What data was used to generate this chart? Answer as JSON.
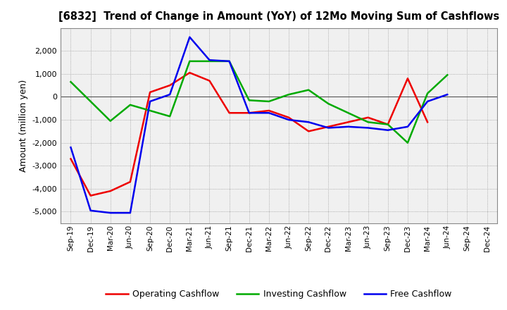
{
  "title": "[6832]  Trend of Change in Amount (YoY) of 12Mo Moving Sum of Cashflows",
  "ylabel": "Amount (million yen)",
  "x_labels": [
    "Sep-19",
    "Dec-19",
    "Mar-20",
    "Jun-20",
    "Sep-20",
    "Dec-20",
    "Mar-21",
    "Jun-21",
    "Sep-21",
    "Dec-21",
    "Mar-22",
    "Jun-22",
    "Sep-22",
    "Dec-22",
    "Mar-23",
    "Jun-23",
    "Sep-23",
    "Dec-23",
    "Mar-24",
    "Jun-24",
    "Sep-24",
    "Dec-24"
  ],
  "operating": [
    -2700,
    -4300,
    -4100,
    -3700,
    200,
    500,
    1050,
    700,
    -700,
    -700,
    -600,
    -900,
    -1500,
    -1300,
    -1100,
    -900,
    -1200,
    800,
    -1100,
    null,
    null,
    null
  ],
  "investing": [
    650,
    null,
    -1050,
    -350,
    -600,
    -850,
    1550,
    1550,
    1550,
    -150,
    -200,
    100,
    300,
    -300,
    null,
    -1100,
    -1200,
    -2000,
    150,
    950,
    null,
    null
  ],
  "free": [
    -2200,
    -4950,
    -5050,
    -5050,
    -200,
    100,
    2600,
    1600,
    1550,
    -700,
    -700,
    -1000,
    -1100,
    -1350,
    -1300,
    -1350,
    -1450,
    -1300,
    -200,
    100,
    null,
    null
  ],
  "ylim": [
    -5500,
    3000
  ],
  "yticks": [
    -5000,
    -4000,
    -3000,
    -2000,
    -1000,
    0,
    1000,
    2000
  ],
  "colors": {
    "operating": "#ee0000",
    "investing": "#00aa00",
    "free": "#0000ee"
  },
  "legend_labels": [
    "Operating Cashflow",
    "Investing Cashflow",
    "Free Cashflow"
  ],
  "background_color": "#ffffff",
  "plot_bg_color": "#f0f0f0",
  "grid_color": "#999999"
}
